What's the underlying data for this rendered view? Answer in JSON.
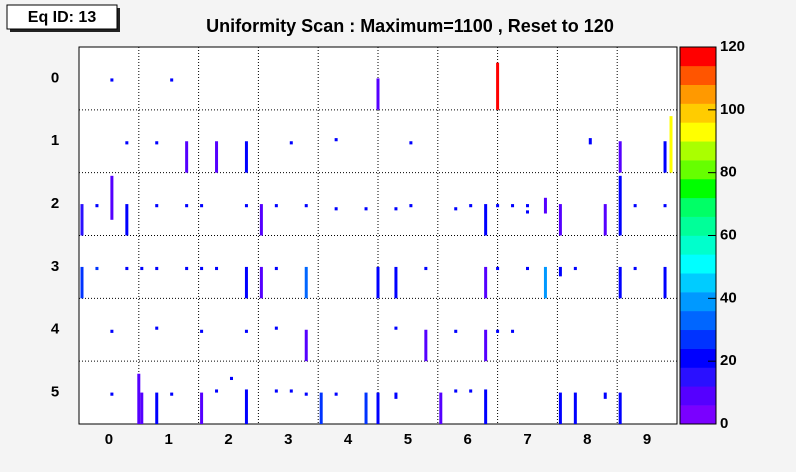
{
  "chart_data": {
    "type": "heatmap",
    "label_box": "Eq ID: 13",
    "title": "Uniformity Scan : Maximum=1100 , Reset to 120",
    "xlim": [
      -0.5,
      9.5
    ],
    "xticks": [
      0,
      1,
      2,
      3,
      4,
      5,
      6,
      7,
      8,
      9
    ],
    "ylim": [
      5.5,
      -0.5
    ],
    "yticks": [
      0,
      1,
      2,
      3,
      4,
      5
    ],
    "zlim": [
      0,
      120
    ],
    "zticks": [
      0,
      20,
      40,
      60,
      80,
      100,
      120
    ],
    "grid": true,
    "palette": [
      "#7a00ff",
      "#5500ff",
      "#2a10ff",
      "#0000ff",
      "#0033ff",
      "#0066ff",
      "#0099ff",
      "#00ccff",
      "#00ffff",
      "#00ffcc",
      "#00ff99",
      "#00ff66",
      "#00ff00",
      "#66ff00",
      "#aaff00",
      "#ffff00",
      "#ffcc00",
      "#ff9900",
      "#ff5500",
      "#ff0000"
    ],
    "cells": [
      [
        0.05,
        0,
        0.05,
        20
      ],
      [
        1.05,
        0,
        0.05,
        20
      ],
      [
        4.5,
        0,
        0.5,
        10
      ],
      [
        6.5,
        -0.25,
        0.5,
        120
      ],
      [
        0.3,
        1,
        1.05,
        20
      ],
      [
        0.8,
        1,
        1.05,
        20
      ],
      [
        1.3,
        1,
        1.5,
        10
      ],
      [
        1.8,
        1,
        1.5,
        10
      ],
      [
        2.3,
        1,
        1.5,
        20
      ],
      [
        3.05,
        1,
        1.05,
        20
      ],
      [
        3.8,
        0.95,
        1,
        20
      ],
      [
        5.05,
        1,
        1.05,
        20
      ],
      [
        8.05,
        0.95,
        1.05,
        20
      ],
      [
        8.55,
        1,
        1.5,
        10
      ],
      [
        9.3,
        1,
        1.5,
        20
      ],
      [
        9.4,
        0.6,
        1.5,
        92
      ],
      [
        -0.45,
        2,
        2.5,
        15
      ],
      [
        -0.2,
        2,
        2.05,
        20
      ],
      [
        0.05,
        1.55,
        2.25,
        10
      ],
      [
        0.3,
        2,
        2.5,
        20
      ],
      [
        0.8,
        2,
        2.05,
        20
      ],
      [
        1.3,
        2,
        2.05,
        20
      ],
      [
        1.55,
        2,
        2.05,
        20
      ],
      [
        2.3,
        2,
        2.05,
        20
      ],
      [
        2.55,
        2,
        2.5,
        10
      ],
      [
        2.8,
        2,
        2.05,
        20
      ],
      [
        3.3,
        2,
        2.05,
        20
      ],
      [
        3.8,
        2.05,
        2.1,
        20
      ],
      [
        4.3,
        2.05,
        2.1,
        20
      ],
      [
        4.8,
        2.05,
        2.1,
        20
      ],
      [
        5.05,
        2,
        2.05,
        20
      ],
      [
        5.8,
        2.05,
        2.1,
        20
      ],
      [
        6.05,
        2,
        2.05,
        20
      ],
      [
        6.3,
        2,
        2.5,
        20
      ],
      [
        6.5,
        2,
        2.05,
        20
      ],
      [
        6.75,
        2,
        2.05,
        20
      ],
      [
        7.0,
        2,
        2.05,
        20
      ],
      [
        7.0,
        2.1,
        2.15,
        20
      ],
      [
        7.3,
        1.9,
        2.15,
        10
      ],
      [
        7.55,
        2,
        2.5,
        10
      ],
      [
        8.3,
        2,
        2.5,
        10
      ],
      [
        8.55,
        1.55,
        2.5,
        20
      ],
      [
        8.8,
        2,
        2.05,
        20
      ],
      [
        9.3,
        2,
        2.05,
        20
      ],
      [
        -0.45,
        3,
        3.5,
        25
      ],
      [
        -0.2,
        3,
        3.05,
        25
      ],
      [
        0.3,
        3,
        3.05,
        20
      ],
      [
        0.55,
        3,
        3.05,
        20
      ],
      [
        0.8,
        3,
        3.05,
        20
      ],
      [
        1.3,
        3,
        3.05,
        20
      ],
      [
        1.55,
        3,
        3.05,
        20
      ],
      [
        1.8,
        3,
        3.05,
        20
      ],
      [
        2.3,
        3,
        3.5,
        20
      ],
      [
        2.55,
        3,
        3.5,
        10
      ],
      [
        2.8,
        3,
        3.05,
        20
      ],
      [
        3.3,
        3,
        3.5,
        35
      ],
      [
        4.5,
        3,
        3.5,
        20
      ],
      [
        4.8,
        3,
        3.5,
        20
      ],
      [
        5.3,
        3,
        3.05,
        20
      ],
      [
        6.3,
        3,
        3.5,
        10
      ],
      [
        6.5,
        3,
        3.05,
        20
      ],
      [
        7.0,
        3,
        3.05,
        20
      ],
      [
        7.3,
        3,
        3.5,
        40
      ],
      [
        7.55,
        3,
        3.15,
        20
      ],
      [
        7.8,
        3,
        3.05,
        20
      ],
      [
        8.55,
        3,
        3.5,
        20
      ],
      [
        8.8,
        3,
        3.05,
        20
      ],
      [
        9.3,
        3,
        3.5,
        20
      ],
      [
        0.05,
        4,
        4.05,
        20
      ],
      [
        0.8,
        3.95,
        4,
        20
      ],
      [
        1.55,
        4,
        4.05,
        20
      ],
      [
        2.3,
        4,
        4.05,
        20
      ],
      [
        2.8,
        3.95,
        4,
        20
      ],
      [
        3.3,
        4,
        4.5,
        10
      ],
      [
        4.8,
        3.95,
        4,
        20
      ],
      [
        5.3,
        4,
        4.5,
        10
      ],
      [
        5.8,
        4,
        4.05,
        20
      ],
      [
        6.3,
        4,
        4.5,
        10
      ],
      [
        6.5,
        4,
        4.05,
        20
      ],
      [
        6.75,
        4,
        4.05,
        20
      ],
      [
        0.05,
        5,
        5.05,
        20
      ],
      [
        0.5,
        4.7,
        5.5,
        10
      ],
      [
        0.55,
        5,
        5.5,
        10
      ],
      [
        0.8,
        5,
        5.5,
        20
      ],
      [
        1.05,
        5,
        5.05,
        20
      ],
      [
        1.55,
        5,
        5.5,
        10
      ],
      [
        1.8,
        4.95,
        5,
        20
      ],
      [
        2.05,
        4.75,
        4.8,
        20
      ],
      [
        2.3,
        4.95,
        5.5,
        20
      ],
      [
        2.8,
        4.95,
        5,
        20
      ],
      [
        3.05,
        4.95,
        5,
        20
      ],
      [
        3.3,
        5,
        5.05,
        20
      ],
      [
        3.55,
        5,
        5.5,
        25
      ],
      [
        3.8,
        5,
        5.05,
        20
      ],
      [
        4.3,
        5,
        5.5,
        28
      ],
      [
        4.5,
        5,
        5.5,
        20
      ],
      [
        4.8,
        5,
        5.1,
        20
      ],
      [
        5.55,
        5,
        5.5,
        10
      ],
      [
        5.8,
        4.95,
        5,
        20
      ],
      [
        6.05,
        4.95,
        5,
        20
      ],
      [
        6.3,
        4.95,
        5.5,
        20
      ],
      [
        7.55,
        5,
        5.5,
        20
      ],
      [
        7.8,
        5,
        5.5,
        20
      ],
      [
        8.3,
        5,
        5.1,
        20
      ],
      [
        8.55,
        5,
        5.5,
        20
      ]
    ]
  }
}
